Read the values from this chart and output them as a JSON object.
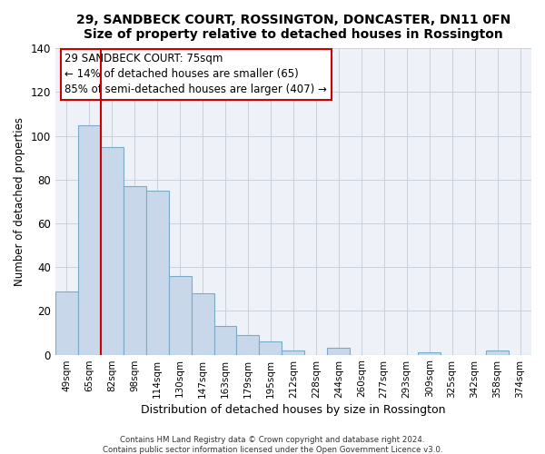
{
  "title": "29, SANDBECK COURT, ROSSINGTON, DONCASTER, DN11 0FN",
  "subtitle": "Size of property relative to detached houses in Rossington",
  "xlabel": "Distribution of detached houses by size in Rossington",
  "ylabel": "Number of detached properties",
  "bar_labels": [
    "49sqm",
    "65sqm",
    "82sqm",
    "98sqm",
    "114sqm",
    "130sqm",
    "147sqm",
    "163sqm",
    "179sqm",
    "195sqm",
    "212sqm",
    "228sqm",
    "244sqm",
    "260sqm",
    "277sqm",
    "293sqm",
    "309sqm",
    "325sqm",
    "342sqm",
    "358sqm",
    "374sqm"
  ],
  "bar_values": [
    29,
    105,
    95,
    77,
    75,
    36,
    28,
    13,
    9,
    6,
    2,
    0,
    3,
    0,
    0,
    0,
    1,
    0,
    0,
    2,
    0
  ],
  "bar_color": "#c8d8ea",
  "bar_edgecolor": "#7aaac8",
  "annotation_title": "29 SANDBECK COURT: 75sqm",
  "annotation_line1": "← 14% of detached houses are smaller (65)",
  "annotation_line2": "85% of semi-detached houses are larger (407) →",
  "annotation_box_color": "#ffffff",
  "annotation_box_edgecolor": "#cc0000",
  "vline_color": "#cc0000",
  "ylim": [
    0,
    140
  ],
  "yticks": [
    0,
    20,
    40,
    60,
    80,
    100,
    120,
    140
  ],
  "footer1": "Contains HM Land Registry data © Crown copyright and database right 2024.",
  "footer2": "Contains public sector information licensed under the Open Government Licence v3.0.",
  "bg_color": "#ffffff",
  "plot_bg_color": "#eef2f8"
}
